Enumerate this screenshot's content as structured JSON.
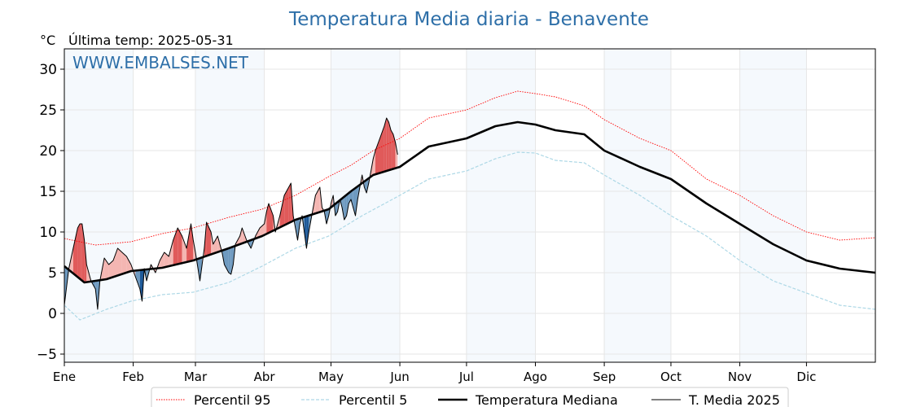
{
  "chart_data": {
    "type": "line",
    "title": "Temperatura Media diaria - Benavente",
    "unit_label": "°C",
    "subtitle": "Última temp: 2025-05-31",
    "watermark": "WWW.EMBALSES.NET",
    "x_unit": "day_of_year",
    "xlim": [
      1,
      366
    ],
    "ylim": [
      -6,
      32.5
    ],
    "yticks": [
      -5,
      0,
      5,
      10,
      15,
      20,
      25,
      30
    ],
    "ytick_labels": [
      "−5",
      "0",
      "5",
      "10",
      "15",
      "20",
      "25",
      "30"
    ],
    "month_starts": [
      1,
      32,
      60,
      91,
      121,
      152,
      182,
      213,
      244,
      274,
      305,
      335
    ],
    "months": [
      "Ene",
      "Feb",
      "Mar",
      "Abr",
      "May",
      "Jun",
      "Jul",
      "Ago",
      "Sep",
      "Oct",
      "Nov",
      "Dic"
    ],
    "shaded_months": [
      "Ene",
      "Mar",
      "May",
      "Jul",
      "Sep",
      "Nov"
    ],
    "grid": true,
    "legend_position": "bottom-center",
    "colors": {
      "p95": "#ff0000",
      "p5": "#add8e6",
      "median": "#000000",
      "current": "#000000",
      "above_fill": "#f4b6b2",
      "above_strong": "#e05a5a",
      "below_fill": "#6e9ac0",
      "below_strong": "#1f5a99",
      "month_band": "#f5f9fd",
      "title": "#2e6fa8"
    },
    "series": [
      {
        "name": "Percentil 95",
        "key": "p95",
        "style": "dotted-red",
        "points": [
          [
            1,
            9.2
          ],
          [
            15,
            8.4
          ],
          [
            31,
            8.8
          ],
          [
            45,
            9.8
          ],
          [
            59,
            10.5
          ],
          [
            75,
            11.8
          ],
          [
            90,
            12.8
          ],
          [
            105,
            14.5
          ],
          [
            120,
            16.8
          ],
          [
            130,
            18.2
          ],
          [
            140,
            20.0
          ],
          [
            152,
            21.5
          ],
          [
            165,
            24.0
          ],
          [
            182,
            25.0
          ],
          [
            195,
            26.5
          ],
          [
            205,
            27.3
          ],
          [
            213,
            27.0
          ],
          [
            222,
            26.6
          ],
          [
            235,
            25.5
          ],
          [
            244,
            23.8
          ],
          [
            260,
            21.5
          ],
          [
            274,
            20.0
          ],
          [
            290,
            16.5
          ],
          [
            305,
            14.5
          ],
          [
            320,
            12.0
          ],
          [
            335,
            10.0
          ],
          [
            350,
            9.0
          ],
          [
            366,
            9.3
          ]
        ]
      },
      {
        "name": "Percentil 5",
        "key": "p5",
        "style": "dashed-lightblue",
        "points": [
          [
            1,
            1.0
          ],
          [
            8,
            -0.8
          ],
          [
            20,
            0.5
          ],
          [
            31,
            1.5
          ],
          [
            45,
            2.3
          ],
          [
            59,
            2.6
          ],
          [
            75,
            3.8
          ],
          [
            90,
            5.8
          ],
          [
            105,
            8.0
          ],
          [
            120,
            9.5
          ],
          [
            135,
            12.0
          ],
          [
            152,
            14.5
          ],
          [
            165,
            16.5
          ],
          [
            182,
            17.5
          ],
          [
            195,
            19.0
          ],
          [
            205,
            19.8
          ],
          [
            213,
            19.7
          ],
          [
            222,
            18.8
          ],
          [
            235,
            18.5
          ],
          [
            244,
            17.0
          ],
          [
            260,
            14.5
          ],
          [
            274,
            12.0
          ],
          [
            290,
            9.5
          ],
          [
            305,
            6.5
          ],
          [
            320,
            4.0
          ],
          [
            335,
            2.5
          ],
          [
            350,
            1.0
          ],
          [
            366,
            0.5
          ]
        ]
      },
      {
        "name": "Temperatura Mediana",
        "key": "median",
        "style": "solid-black-thick",
        "points": [
          [
            1,
            5.8
          ],
          [
            10,
            3.8
          ],
          [
            20,
            4.2
          ],
          [
            31,
            5.2
          ],
          [
            45,
            5.6
          ],
          [
            59,
            6.5
          ],
          [
            75,
            8.0
          ],
          [
            90,
            9.5
          ],
          [
            105,
            11.5
          ],
          [
            120,
            12.8
          ],
          [
            130,
            15.0
          ],
          [
            140,
            17.0
          ],
          [
            152,
            18.0
          ],
          [
            165,
            20.5
          ],
          [
            182,
            21.5
          ],
          [
            195,
            23.0
          ],
          [
            205,
            23.5
          ],
          [
            213,
            23.2
          ],
          [
            222,
            22.5
          ],
          [
            235,
            22.0
          ],
          [
            244,
            20.0
          ],
          [
            260,
            18.0
          ],
          [
            274,
            16.5
          ],
          [
            290,
            13.5
          ],
          [
            305,
            11.0
          ],
          [
            320,
            8.5
          ],
          [
            335,
            6.5
          ],
          [
            350,
            5.5
          ],
          [
            366,
            5.0
          ]
        ]
      },
      {
        "name": "T. Media 2025",
        "key": "current",
        "style": "solid-black-thin",
        "points": [
          [
            1,
            1.0
          ],
          [
            3,
            5.5
          ],
          [
            5,
            8.0
          ],
          [
            7,
            10.5
          ],
          [
            8,
            11.0
          ],
          [
            9,
            11.0
          ],
          [
            10,
            9.0
          ],
          [
            11,
            6.0
          ],
          [
            13,
            4.0
          ],
          [
            15,
            3.0
          ],
          [
            16,
            0.5
          ],
          [
            17,
            4.0
          ],
          [
            19,
            6.8
          ],
          [
            21,
            6.0
          ],
          [
            23,
            6.5
          ],
          [
            25,
            8.0
          ],
          [
            27,
            7.5
          ],
          [
            29,
            7.0
          ],
          [
            31,
            6.0
          ],
          [
            33,
            4.5
          ],
          [
            35,
            3.0
          ],
          [
            36,
            1.5
          ],
          [
            37,
            5.5
          ],
          [
            38,
            4.0
          ],
          [
            40,
            6.0
          ],
          [
            42,
            5.0
          ],
          [
            44,
            6.5
          ],
          [
            46,
            7.5
          ],
          [
            48,
            7.0
          ],
          [
            50,
            9.0
          ],
          [
            52,
            10.5
          ],
          [
            54,
            9.5
          ],
          [
            56,
            8.0
          ],
          [
            58,
            11.0
          ],
          [
            59,
            9.0
          ],
          [
            60,
            7.5
          ],
          [
            62,
            4.0
          ],
          [
            63,
            6.0
          ],
          [
            64,
            8.0
          ],
          [
            65,
            11.2
          ],
          [
            67,
            10.0
          ],
          [
            68,
            8.5
          ],
          [
            70,
            9.5
          ],
          [
            72,
            7.5
          ],
          [
            73,
            6.0
          ],
          [
            75,
            5.0
          ],
          [
            76,
            4.8
          ],
          [
            77,
            6.0
          ],
          [
            78,
            8.5
          ],
          [
            80,
            9.5
          ],
          [
            81,
            10.5
          ],
          [
            83,
            9.0
          ],
          [
            85,
            8.0
          ],
          [
            87,
            9.5
          ],
          [
            89,
            10.5
          ],
          [
            91,
            11.0
          ],
          [
            92,
            12.5
          ],
          [
            93,
            13.5
          ],
          [
            95,
            12.0
          ],
          [
            96,
            10.0
          ],
          [
            98,
            12.0
          ],
          [
            100,
            14.5
          ],
          [
            102,
            15.5
          ],
          [
            103,
            16.0
          ],
          [
            104,
            12.0
          ],
          [
            105,
            10.5
          ],
          [
            106,
            9.0
          ],
          [
            107,
            11.0
          ],
          [
            108,
            12.0
          ],
          [
            109,
            10.0
          ],
          [
            110,
            8.0
          ],
          [
            111,
            10.0
          ],
          [
            112,
            11.5
          ],
          [
            114,
            14.5
          ],
          [
            116,
            15.5
          ],
          [
            117,
            13.0
          ],
          [
            118,
            12.5
          ],
          [
            119,
            11.0
          ],
          [
            120,
            12.0
          ],
          [
            121,
            13.5
          ],
          [
            122,
            14.5
          ],
          [
            123,
            12.0
          ],
          [
            124,
            12.5
          ],
          [
            125,
            14.0
          ],
          [
            126,
            13.0
          ],
          [
            127,
            11.5
          ],
          [
            128,
            12.0
          ],
          [
            129,
            13.5
          ],
          [
            130,
            14.0
          ],
          [
            131,
            13.0
          ],
          [
            132,
            12.0
          ],
          [
            133,
            14.0
          ],
          [
            134,
            15.5
          ],
          [
            135,
            17.0
          ],
          [
            136,
            15.5
          ],
          [
            137,
            14.8
          ],
          [
            138,
            16.0
          ],
          [
            139,
            17.5
          ],
          [
            140,
            19.0
          ],
          [
            141,
            20.0
          ],
          [
            143,
            21.5
          ],
          [
            145,
            23.0
          ],
          [
            146,
            24.0
          ],
          [
            147,
            23.5
          ],
          [
            148,
            22.5
          ],
          [
            149,
            22.0
          ],
          [
            150,
            21.0
          ],
          [
            151,
            19.5
          ]
        ]
      }
    ]
  }
}
